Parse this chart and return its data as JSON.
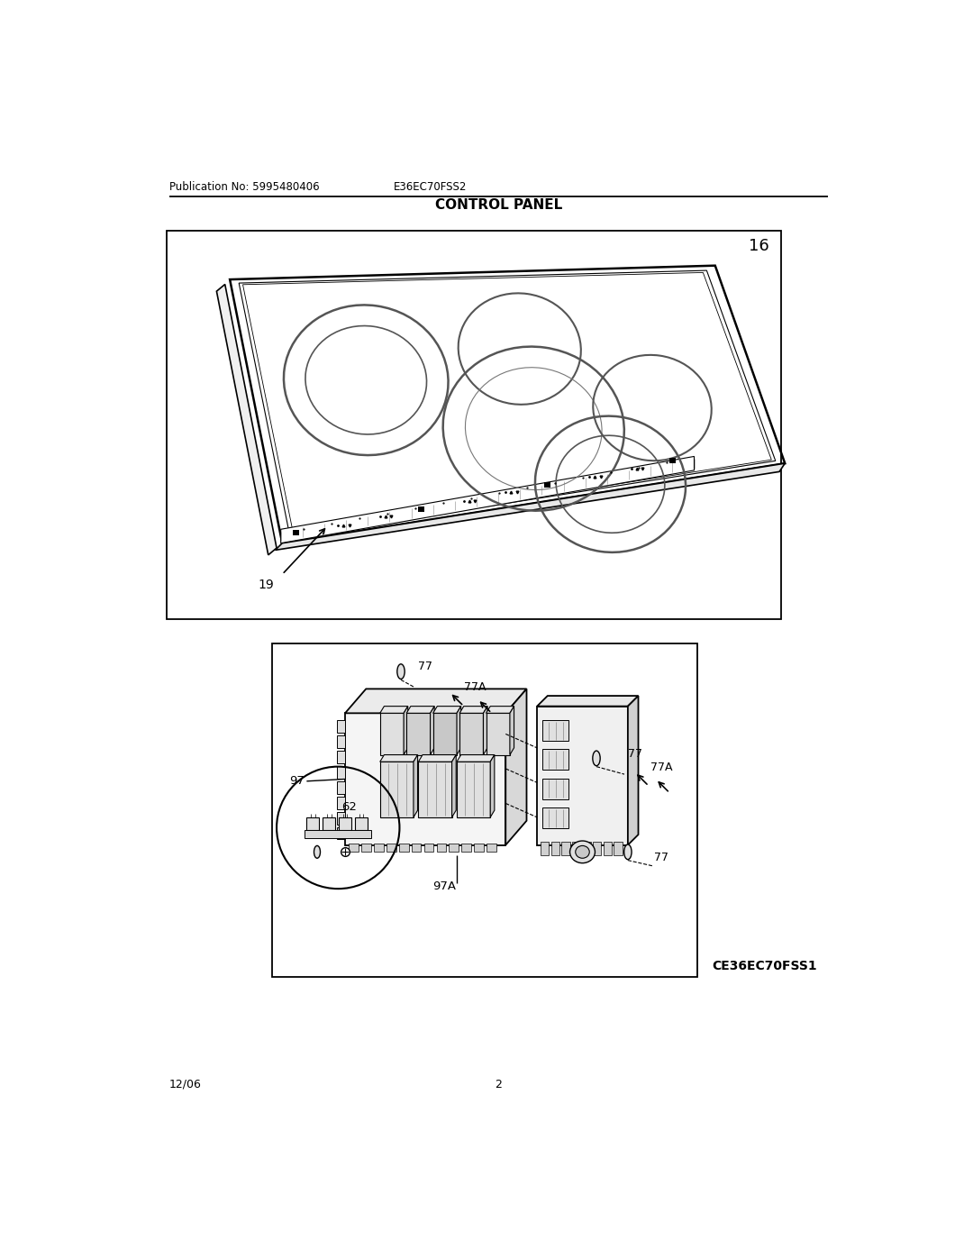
{
  "page_title": "CONTROL PANEL",
  "pub_no": "Publication No: 5995480406",
  "model": "E36EC70FSS2",
  "date": "12/06",
  "page_num": "2",
  "part_num_16": "16",
  "part_num_19": "19",
  "part_num_97": "97",
  "part_num_97a": "97A",
  "part_num_77_1": "77",
  "part_num_77_2": "77",
  "part_num_77_3": "77",
  "part_num_77a_1": "77A",
  "part_num_77a_2": "77A",
  "part_num_62": "62",
  "model2": "CE36EC70FSS1",
  "bg_color": "#ffffff",
  "line_color": "#000000"
}
